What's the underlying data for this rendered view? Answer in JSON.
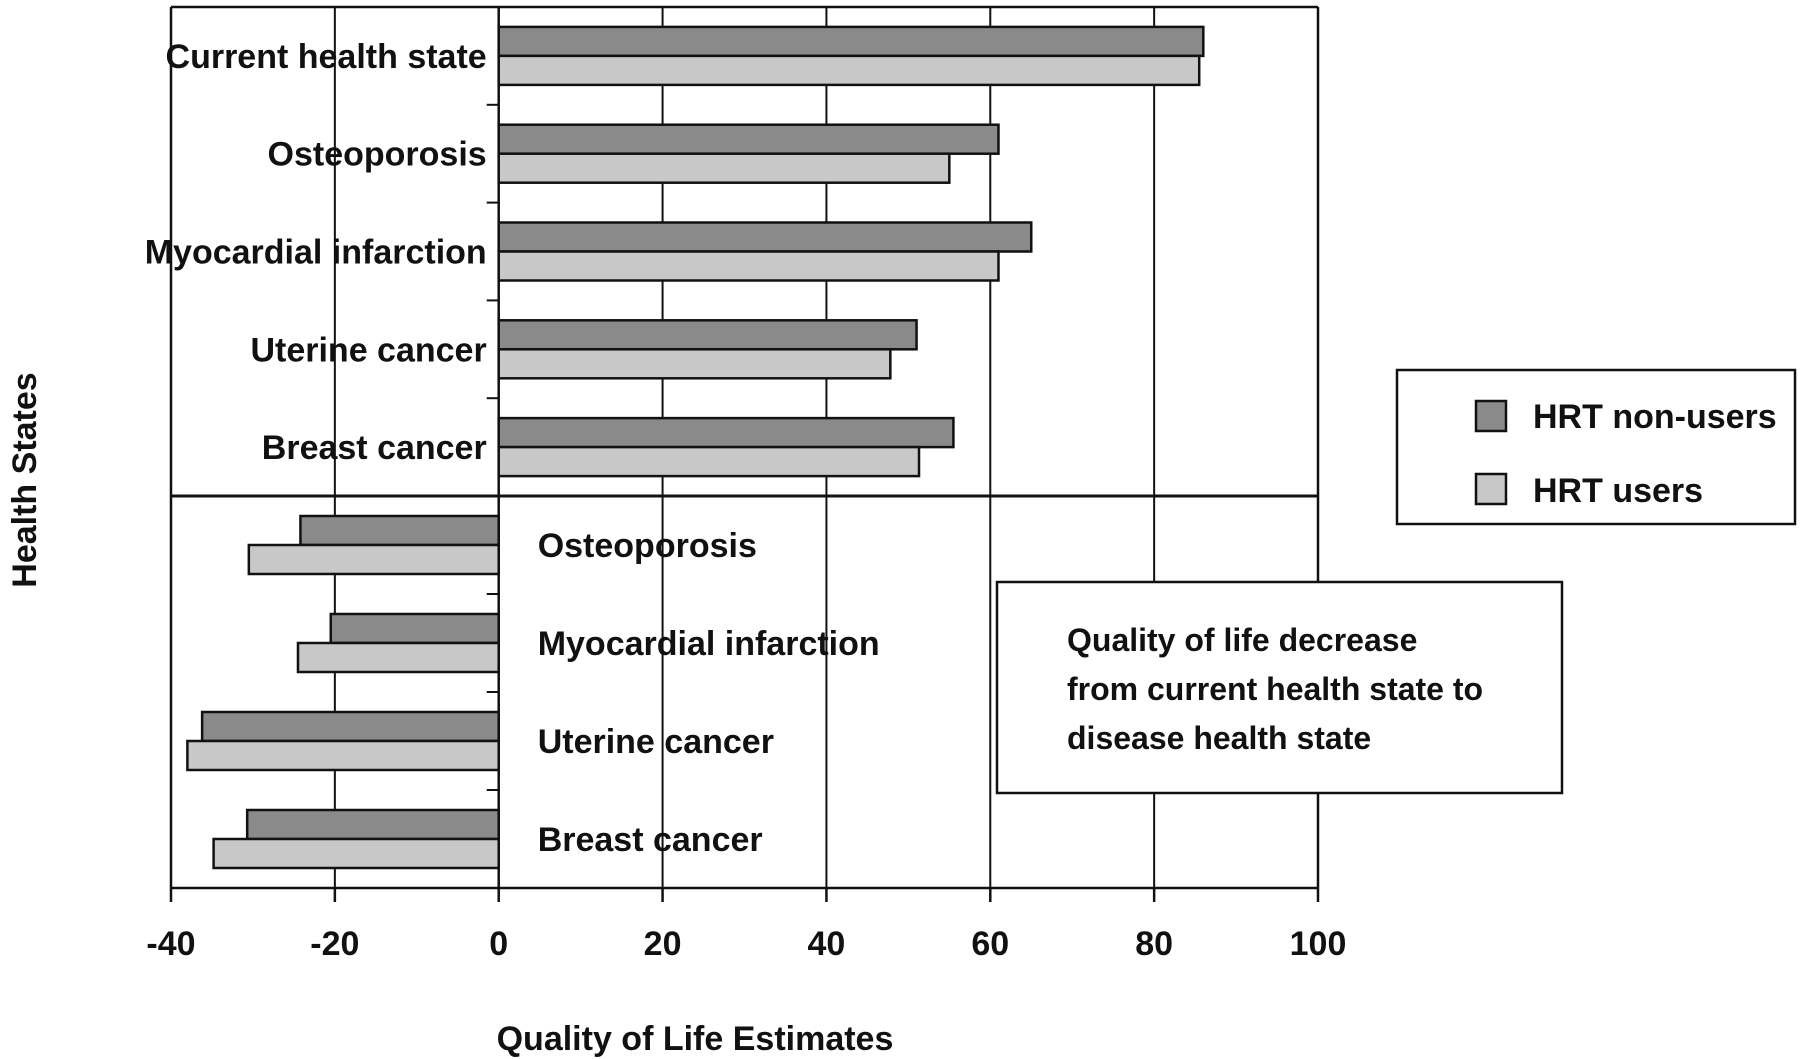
{
  "chart_data": {
    "type": "bar",
    "orientation": "horizontal",
    "xlabel": "Quality of Life Estimates",
    "ylabel": "Health States",
    "xlim": [
      -40,
      100
    ],
    "xticks": [
      -40,
      -20,
      0,
      20,
      40,
      60,
      80,
      100
    ],
    "grid": "vertical at each x tick",
    "legend_position": "right",
    "series": [
      {
        "name": "HRT non-users",
        "color": "#8a8a8a"
      },
      {
        "name": "HRT users",
        "color": "#c8c8c8"
      }
    ],
    "panels": [
      {
        "categories": [
          "Current health state",
          "Osteoporosis",
          "Myocardial infarction",
          "Uterine cancer",
          "Breast cancer"
        ],
        "values": {
          "HRT non-users": [
            86,
            61,
            65,
            51,
            55.5
          ],
          "HRT users": [
            85.5,
            55,
            61,
            47.8,
            51.3
          ]
        }
      },
      {
        "categories": [
          "Osteoporosis",
          "Myocardial infarction",
          "Uterine cancer",
          "Breast cancer"
        ],
        "values": {
          "HRT non-users": [
            -24.2,
            -20.5,
            -36.2,
            -30.7
          ],
          "HRT users": [
            -30.5,
            -24.5,
            -38,
            -34.8
          ]
        },
        "annotation": [
          "Quality of life decrease",
          "from current health state to",
          "disease health state"
        ]
      }
    ]
  }
}
